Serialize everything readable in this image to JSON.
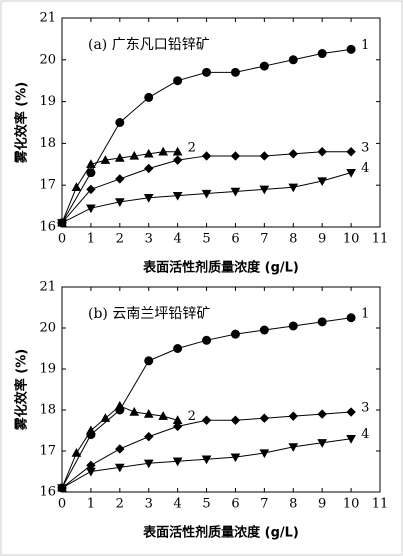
{
  "chart_data": [
    {
      "type": "line",
      "title": "(a) 广东凡口铅锌矿",
      "xlabel": "表面活性剂质量浓度 (g/L)",
      "ylabel": "雾化效率 (%)",
      "xlim": [
        0,
        11
      ],
      "ylim": [
        16,
        21
      ],
      "xticks": [
        0,
        1,
        2,
        3,
        4,
        5,
        6,
        7,
        8,
        9,
        10,
        11
      ],
      "yticks": [
        16,
        17,
        18,
        19,
        20,
        21
      ],
      "series": [
        {
          "name": "1",
          "color": "#000000",
          "marker": "circle",
          "x": [
            0,
            1,
            2,
            3,
            4,
            5,
            6,
            7,
            8,
            9,
            10
          ],
          "values": [
            16.1,
            17.3,
            18.5,
            19.1,
            19.5,
            19.7,
            19.7,
            19.85,
            20.0,
            20.15,
            20.25
          ]
        },
        {
          "name": "2",
          "color": "#000000",
          "marker": "triangle-up",
          "x": [
            0,
            0.5,
            1,
            1.5,
            2,
            2.5,
            3,
            3.5,
            4
          ],
          "values": [
            16.1,
            16.95,
            17.5,
            17.6,
            17.65,
            17.7,
            17.75,
            17.8,
            17.8
          ]
        },
        {
          "name": "3",
          "color": "#000000",
          "marker": "diamond",
          "x": [
            0,
            1,
            2,
            3,
            4,
            5,
            6,
            7,
            8,
            9,
            10
          ],
          "values": [
            16.1,
            16.9,
            17.15,
            17.4,
            17.6,
            17.7,
            17.7,
            17.7,
            17.75,
            17.8,
            17.8
          ]
        },
        {
          "name": "4",
          "color": "#000000",
          "marker": "triangle-down",
          "x": [
            0,
            1,
            2,
            3,
            4,
            5,
            6,
            7,
            8,
            9,
            10
          ],
          "values": [
            16.1,
            16.45,
            16.6,
            16.7,
            16.75,
            16.8,
            16.85,
            16.9,
            16.95,
            17.1,
            17.3
          ]
        }
      ]
    },
    {
      "type": "line",
      "title": "(b) 云南兰坪铅锌矿",
      "xlabel": "表面活性剂质量浓度 (g/L)",
      "ylabel": "雾化效率 (%)",
      "xlim": [
        0,
        11
      ],
      "ylim": [
        16,
        21
      ],
      "xticks": [
        0,
        1,
        2,
        3,
        4,
        5,
        6,
        7,
        8,
        9,
        10,
        11
      ],
      "yticks": [
        16,
        17,
        18,
        19,
        20,
        21
      ],
      "series": [
        {
          "name": "1",
          "color": "#000000",
          "marker": "circle",
          "x": [
            0,
            1,
            2,
            3,
            4,
            5,
            6,
            7,
            8,
            9,
            10
          ],
          "values": [
            16.1,
            17.4,
            18.0,
            19.2,
            19.5,
            19.7,
            19.85,
            19.95,
            20.05,
            20.15,
            20.25
          ]
        },
        {
          "name": "2",
          "color": "#000000",
          "marker": "triangle-up",
          "x": [
            0,
            0.5,
            1,
            1.5,
            2,
            2.5,
            3,
            3.5,
            4
          ],
          "values": [
            16.1,
            16.95,
            17.5,
            17.8,
            18.1,
            17.95,
            17.9,
            17.85,
            17.75
          ]
        },
        {
          "name": "3",
          "color": "#000000",
          "marker": "diamond",
          "x": [
            0,
            1,
            2,
            3,
            4,
            5,
            6,
            7,
            8,
            9,
            10
          ],
          "values": [
            16.1,
            16.65,
            17.05,
            17.35,
            17.6,
            17.75,
            17.75,
            17.8,
            17.85,
            17.9,
            17.95
          ]
        },
        {
          "name": "4",
          "color": "#000000",
          "marker": "triangle-down",
          "x": [
            0,
            1,
            2,
            3,
            4,
            5,
            6,
            7,
            8,
            9,
            10
          ],
          "values": [
            16.1,
            16.5,
            16.6,
            16.7,
            16.75,
            16.8,
            16.85,
            16.95,
            17.1,
            17.2,
            17.3
          ]
        }
      ]
    }
  ]
}
